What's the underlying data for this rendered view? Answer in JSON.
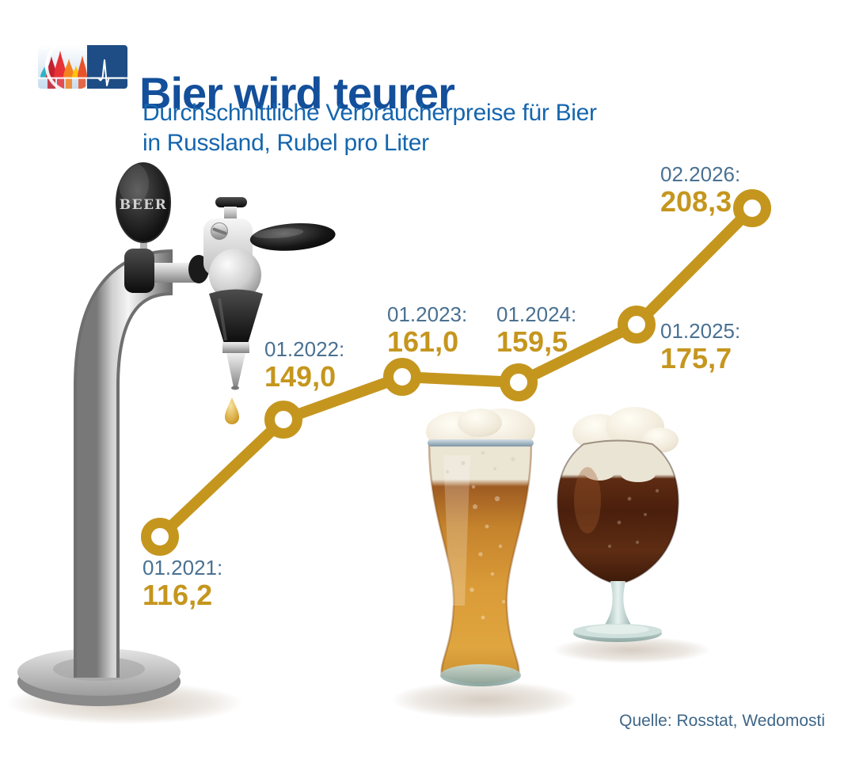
{
  "header": {
    "title": "Bier wird teurer",
    "title_color": "#134F9A",
    "subtitle_line1": "Durchschnittliche Verbraucherpreise für Bier",
    "subtitle_line2": "in Russland, Rubel pro Liter",
    "subtitle_color": "#1566AE",
    "logo_name": "cathedral-pulse-logo"
  },
  "illustration": {
    "tap_sign_label": "BEER",
    "items": [
      "beer-tap-tower",
      "wheat-beer-glass",
      "tulip-beer-glass",
      "beer-drop"
    ]
  },
  "chart_data": {
    "type": "line",
    "title": "Bier wird teurer",
    "subtitle": "Durchschnittliche Verbraucherpreise für Bier in Russland, Rubel pro Liter",
    "unit": "Rubel pro Liter",
    "categories": [
      "01.2021",
      "01.2022",
      "01.2023",
      "01.2024",
      "01.2025",
      "02.2026"
    ],
    "values": [
      116.2,
      149.0,
      161.0,
      159.5,
      175.7,
      208.3
    ],
    "points": [
      {
        "date_label": "01.2021:",
        "value_label": "116,2"
      },
      {
        "date_label": "01.2022:",
        "value_label": "149,0"
      },
      {
        "date_label": "01.2023:",
        "value_label": "161,0"
      },
      {
        "date_label": "01.2024:",
        "value_label": "159,5"
      },
      {
        "date_label": "01.2025:",
        "value_label": "175,7"
      },
      {
        "date_label": "02.2026:",
        "value_label": "208,3"
      }
    ],
    "line_color": "#C5961E",
    "point_fill": "#FFFFFF",
    "date_label_color": "#4A7191",
    "value_label_color": "#C5961E",
    "grid": false,
    "legend": false,
    "axes": "none"
  },
  "footer": {
    "source": "Quelle: Rosstat, Wedomosti",
    "source_color": "#3E6687"
  }
}
